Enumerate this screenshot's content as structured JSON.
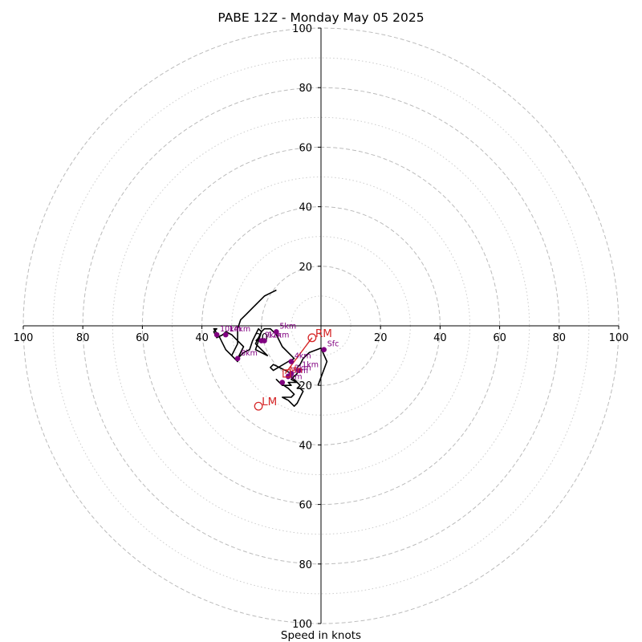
{
  "chart_data": {
    "type": "scatter",
    "title": "PABE 12Z - Monday May 05 2025",
    "xlabel": "Speed in knots",
    "ylabel": "",
    "xlim": [
      -100,
      100
    ],
    "ylim": [
      -100,
      100
    ],
    "rings_major": [
      20,
      40,
      60,
      80,
      100
    ],
    "rings_minor": [
      10,
      30,
      50,
      70,
      90
    ],
    "ticks": {
      "right": [
        "20",
        "40",
        "60",
        "80",
        "100"
      ],
      "left": [
        "100",
        "80",
        "60",
        "40",
        "20"
      ],
      "top": [
        "20",
        "40",
        "60",
        "80",
        "100"
      ],
      "bottom": [
        "20",
        "40",
        "60",
        "80",
        "100"
      ]
    },
    "hodograph": [
      [
        -1,
        -20
      ],
      [
        2,
        -12
      ],
      [
        0,
        -7.5
      ],
      [
        -4,
        -9
      ],
      [
        -6,
        -11
      ],
      [
        -7,
        -13
      ],
      [
        -8,
        -14
      ],
      [
        -8,
        -16
      ],
      [
        -9,
        -17
      ],
      [
        -10,
        -18
      ],
      [
        -8,
        -19
      ],
      [
        -11,
        -19
      ],
      [
        -10,
        -20
      ],
      [
        -13,
        -20
      ],
      [
        -15,
        -18
      ],
      [
        -14,
        -19
      ],
      [
        -11,
        -21
      ],
      [
        -9,
        -23
      ],
      [
        -10,
        -24
      ],
      [
        -13,
        -24
      ],
      [
        -11,
        -25
      ],
      [
        -9,
        -27
      ],
      [
        -8,
        -26
      ],
      [
        -7,
        -24
      ],
      [
        -6,
        -22
      ],
      [
        -7,
        -21
      ],
      [
        -8,
        -21
      ],
      [
        -7,
        -20
      ],
      [
        -8,
        -19
      ],
      [
        -9,
        -18
      ],
      [
        -10,
        -17
      ],
      [
        -10,
        -16
      ],
      [
        -12,
        -15
      ],
      [
        -14,
        -14
      ],
      [
        -16,
        -13
      ],
      [
        -17,
        -14
      ],
      [
        -16,
        -15
      ],
      [
        -11,
        -12
      ],
      [
        -9,
        -11
      ],
      [
        -10,
        -10
      ],
      [
        -13,
        -7
      ],
      [
        -15,
        -3
      ],
      [
        -17,
        -1
      ],
      [
        -19,
        -1
      ],
      [
        -20,
        -2
      ],
      [
        -21,
        -5
      ],
      [
        -22,
        -8
      ],
      [
        -18,
        -10
      ],
      [
        -22,
        -6
      ],
      [
        -20,
        -2
      ],
      [
        -21,
        -1
      ],
      [
        -22,
        -3
      ],
      [
        -23,
        -5
      ],
      [
        -24,
        -8
      ],
      [
        -26,
        -9
      ],
      [
        -27,
        -10
      ],
      [
        -28,
        -11
      ],
      [
        -27,
        -9
      ],
      [
        -26,
        -7
      ],
      [
        -28,
        -5
      ],
      [
        -30,
        -3
      ],
      [
        -32,
        -2
      ],
      [
        -33,
        -3
      ],
      [
        -35,
        -4
      ],
      [
        -36,
        -2
      ],
      [
        -35,
        -1
      ],
      [
        -36,
        -1
      ],
      [
        -34,
        -4
      ],
      [
        -32,
        -8
      ],
      [
        -30,
        -10
      ],
      [
        -28,
        -12
      ],
      [
        -30,
        -10
      ],
      [
        -28,
        -6
      ],
      [
        -28,
        -1
      ],
      [
        -27,
        2
      ],
      [
        -25,
        4
      ],
      [
        -23,
        6
      ],
      [
        -21,
        8
      ],
      [
        -19,
        10
      ],
      [
        -17,
        11
      ],
      [
        -15,
        12
      ]
    ],
    "height_markers": [
      {
        "label": "Sfc",
        "u": 1,
        "v": -8
      },
      {
        "label": "1km",
        "u": -7.5,
        "v": -15
      },
      {
        "label": "2km",
        "u": -10,
        "v": -16
      },
      {
        "label": "3km",
        "u": -11,
        "v": -17
      },
      {
        "label": "4km",
        "u": -10,
        "v": -12
      },
      {
        "label": "5km",
        "u": -15,
        "v": -2
      },
      {
        "label": "6km",
        "u": -13,
        "v": -19
      },
      {
        "label": "8km",
        "u": -28,
        "v": -11
      },
      {
        "label": "9km",
        "u": -20,
        "v": -5
      },
      {
        "label": "10km",
        "u": -35,
        "v": -3
      },
      {
        "label": "12km",
        "u": -19,
        "v": -5
      },
      {
        "label": "14km",
        "u": -32,
        "v": -3
      }
    ],
    "storm_motion": [
      {
        "label": "RM",
        "u": -3,
        "v": -4
      },
      {
        "label": "LM",
        "u": -21,
        "v": -27
      }
    ],
    "mean_wind": {
      "label": "Mn",
      "u": -11.5,
      "v": -16
    },
    "shear_vector": {
      "from": [
        -3,
        -4
      ],
      "to": [
        -12,
        -16
      ]
    },
    "colors": {
      "hodograph": "#000000",
      "markers": "#800080",
      "storm_motion": "#d62728",
      "grid": "#bbbbbb",
      "axes": "#000000"
    }
  }
}
